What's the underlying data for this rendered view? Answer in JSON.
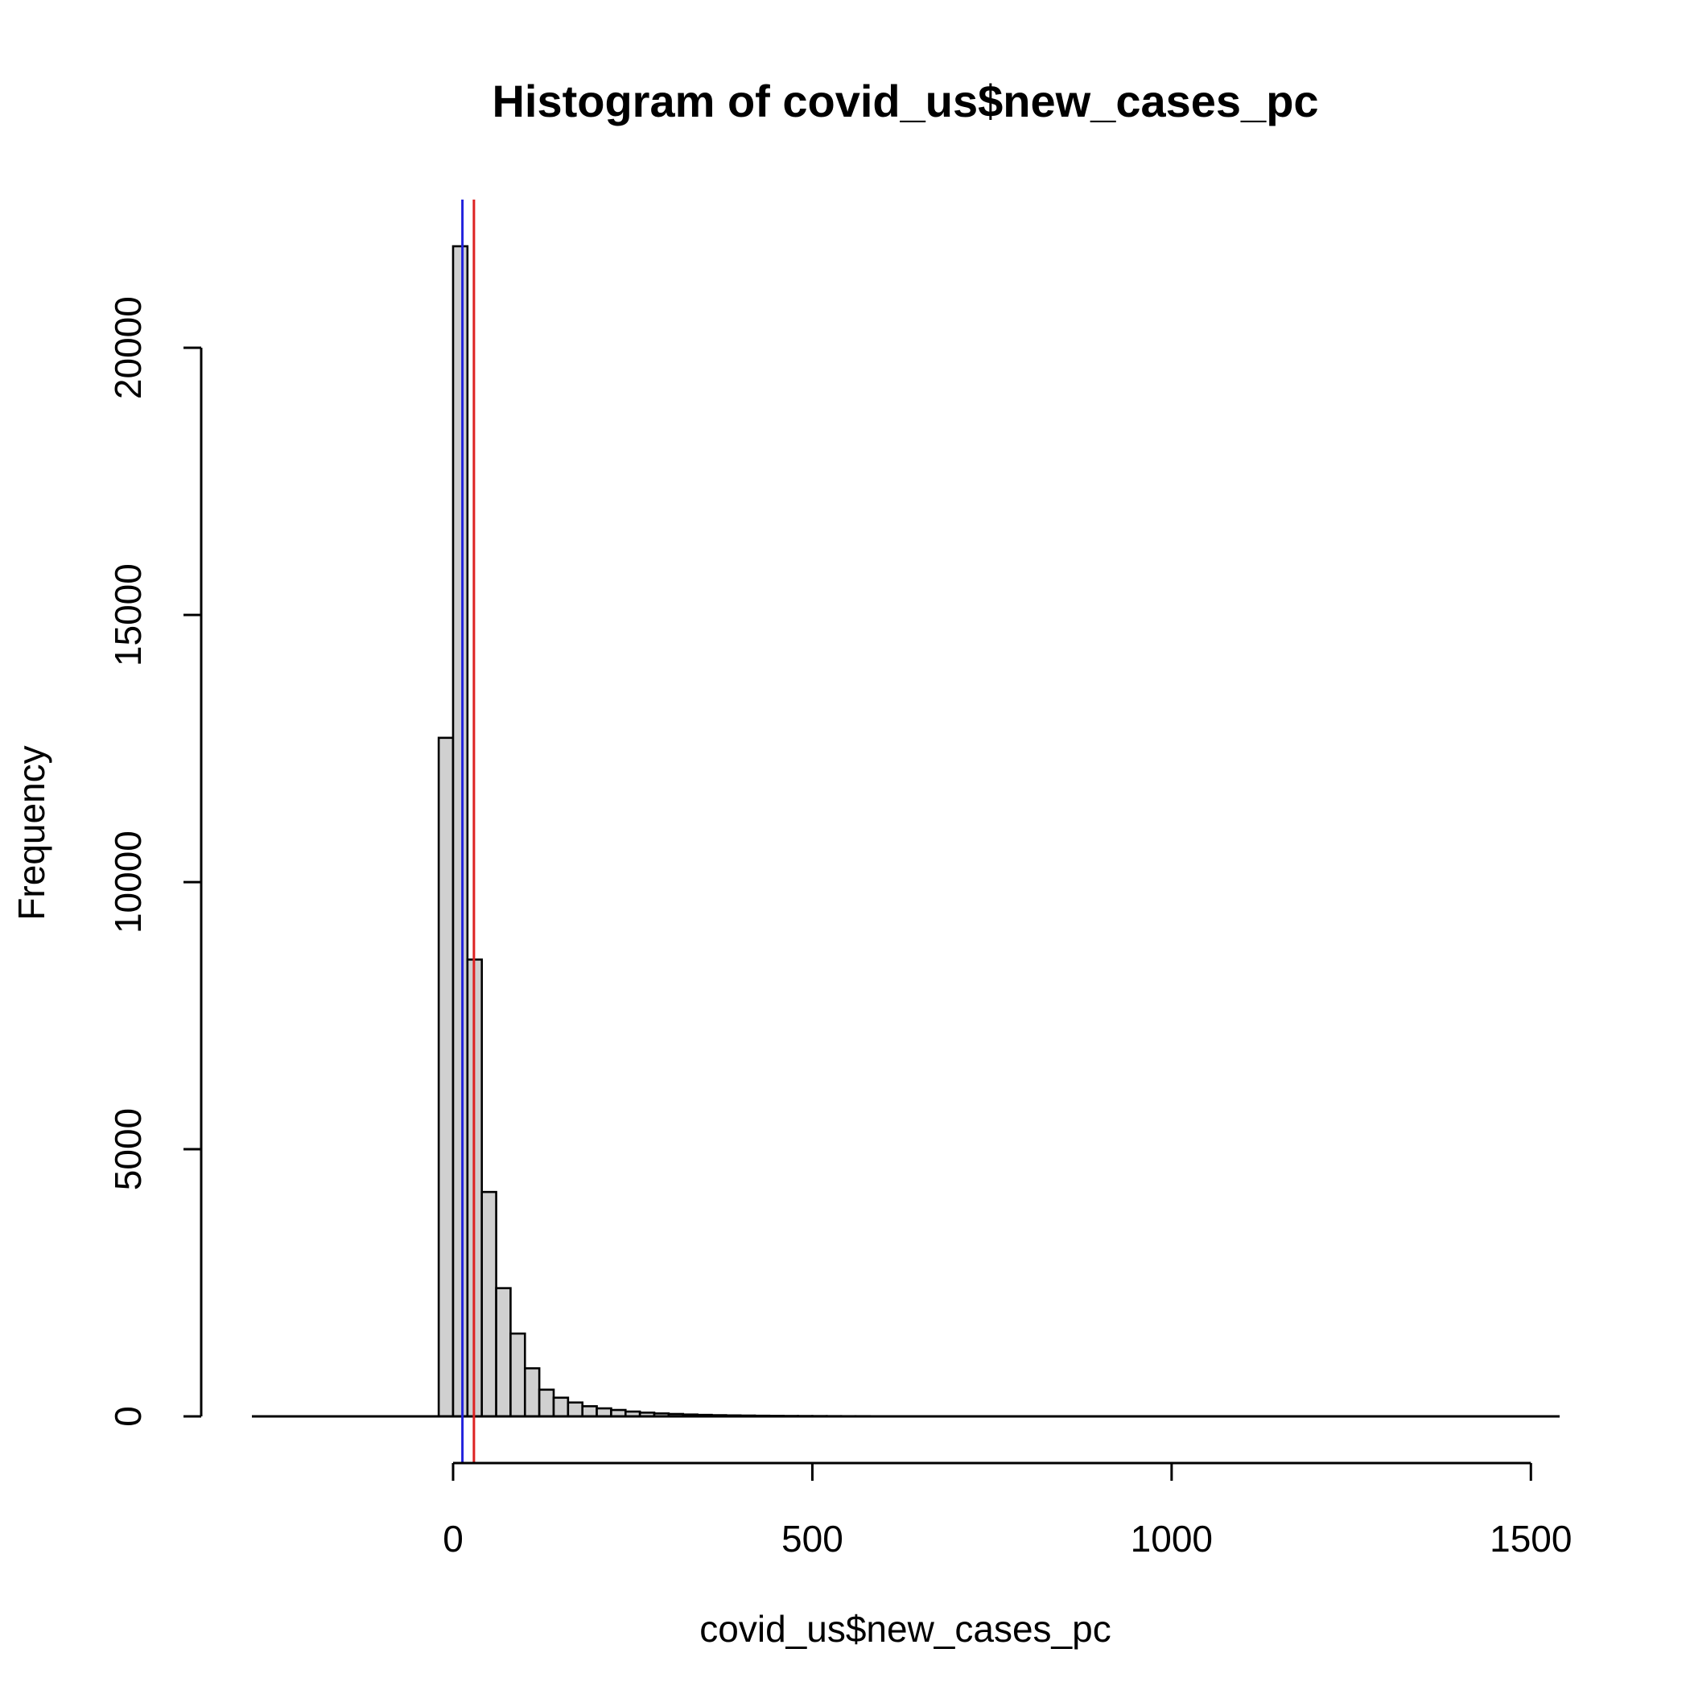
{
  "chart_data": {
    "type": "bar",
    "title": "Histogram of covid_us$new_cases_pc",
    "xlabel": "covid_us$new_cases_pc",
    "ylabel": "Frequency",
    "xlim": [
      -280,
      1540
    ],
    "ylim": [
      0,
      21900
    ],
    "x_ticks": [
      0,
      500,
      1000,
      1500
    ],
    "y_ticks": [
      0,
      5000,
      10000,
      15000,
      20000
    ],
    "bin_width": 20,
    "bin_start": -20,
    "baseline_range": [
      -280,
      1540
    ],
    "values": [
      12700,
      21900,
      8550,
      4200,
      2400,
      1550,
      900,
      500,
      350,
      260,
      190,
      150,
      120,
      90,
      70,
      55,
      45,
      35,
      28,
      22,
      18,
      15,
      12,
      10,
      8,
      7,
      6,
      5,
      4,
      4,
      3,
      3,
      3,
      3,
      3,
      3,
      2,
      2,
      2,
      2
    ],
    "vlines": [
      {
        "x": 13,
        "color": "#2222dd"
      },
      {
        "x": 29,
        "color": "#dd2222"
      }
    ],
    "grid": false
  }
}
